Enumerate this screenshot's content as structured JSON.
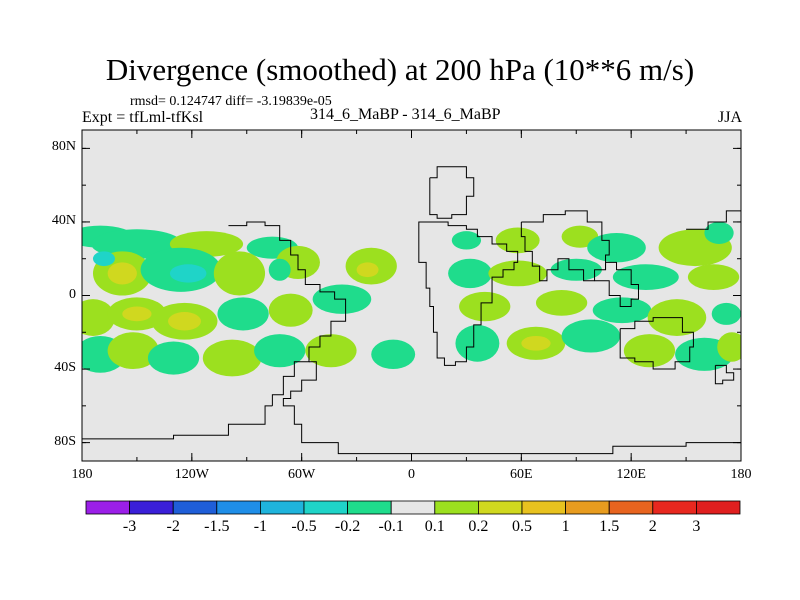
{
  "chart_data": {
    "type": "contour_map",
    "title": "Divergence (smoothed) at 200 hPa (10**6 m/s)",
    "stats": "rmsd= 0.124747 diff= -3.19839e-05",
    "experiment": "Expt = tfLml-tfKsl",
    "runs": "314_6_MaBP - 314_6_MaBP",
    "season": "JJA",
    "x_ticks": [
      "180",
      "120W",
      "60W",
      "0",
      "60E",
      "120E",
      "180"
    ],
    "y_ticks": [
      "80N",
      "40N",
      "0",
      "40S",
      "80S"
    ],
    "lon_range": [
      -180,
      180
    ],
    "lat_range": [
      -90,
      90
    ],
    "colorbar": {
      "labels": [
        "-3",
        "-2",
        "-1.5",
        "-1",
        "-0.5",
        "-0.2",
        "-0.1",
        "0.1",
        "0.2",
        "0.5",
        "1",
        "1.5",
        "2",
        "3"
      ],
      "colors": [
        "#9b1fe8",
        "#3a1fd8",
        "#1f5ed8",
        "#1f8ee8",
        "#1fb4dc",
        "#1fd4c8",
        "#1fdc8c",
        "#e6e6e6",
        "#9ce01f",
        "#d0d81f",
        "#e8c21f",
        "#e89c1f",
        "#e8641f",
        "#e8281f",
        "#e01f1f"
      ]
    },
    "field": {
      "neutral_color": "#e6e6e6",
      "positive_colors": [
        "#9ce01f",
        "#d0d81f"
      ],
      "negative_colors": [
        "#1fdc8c",
        "#1fd4c8",
        "#1fb4dc"
      ],
      "blobs": [
        {
          "lon": -170,
          "lat": 32,
          "w": 18,
          "h": 6,
          "level": -1
        },
        {
          "lon": -150,
          "lat": 28,
          "w": 25,
          "h": 8,
          "level": -1
        },
        {
          "lon": -112,
          "lat": 28,
          "w": 20,
          "h": 7,
          "level": 1
        },
        {
          "lon": -76,
          "lat": 26,
          "w": 14,
          "h": 6,
          "level": -1
        },
        {
          "lon": -158,
          "lat": 12,
          "w": 16,
          "h": 12,
          "level": 1
        },
        {
          "lon": -158,
          "lat": 12,
          "w": 8,
          "h": 6,
          "level": 2
        },
        {
          "lon": -168,
          "lat": 20,
          "w": 6,
          "h": 4,
          "level": -2
        },
        {
          "lon": -126,
          "lat": 14,
          "w": 22,
          "h": 12,
          "level": -1
        },
        {
          "lon": -122,
          "lat": 12,
          "w": 10,
          "h": 5,
          "level": -2
        },
        {
          "lon": -94,
          "lat": 12,
          "w": 14,
          "h": 12,
          "level": 1
        },
        {
          "lon": -62,
          "lat": 18,
          "w": 12,
          "h": 9,
          "level": 1
        },
        {
          "lon": -72,
          "lat": 14,
          "w": 6,
          "h": 6,
          "level": -1
        },
        {
          "lon": -22,
          "lat": 16,
          "w": 14,
          "h": 10,
          "level": 1
        },
        {
          "lon": -24,
          "lat": 14,
          "w": 6,
          "h": 4,
          "level": 2
        },
        {
          "lon": -174,
          "lat": -12,
          "w": 12,
          "h": 10,
          "level": 1
        },
        {
          "lon": -150,
          "lat": -10,
          "w": 16,
          "h": 9,
          "level": 1
        },
        {
          "lon": -150,
          "lat": -10,
          "w": 8,
          "h": 4,
          "level": 2
        },
        {
          "lon": -124,
          "lat": -14,
          "w": 18,
          "h": 10,
          "level": 1
        },
        {
          "lon": -124,
          "lat": -14,
          "w": 9,
          "h": 5,
          "level": 2
        },
        {
          "lon": -92,
          "lat": -10,
          "w": 14,
          "h": 9,
          "level": -1
        },
        {
          "lon": -66,
          "lat": -8,
          "w": 12,
          "h": 9,
          "level": 1
        },
        {
          "lon": -38,
          "lat": -2,
          "w": 16,
          "h": 8,
          "level": -1
        },
        {
          "lon": -170,
          "lat": -32,
          "w": 14,
          "h": 10,
          "level": -1
        },
        {
          "lon": -152,
          "lat": -30,
          "w": 14,
          "h": 10,
          "level": 1
        },
        {
          "lon": -130,
          "lat": -34,
          "w": 14,
          "h": 9,
          "level": -1
        },
        {
          "lon": -98,
          "lat": -34,
          "w": 16,
          "h": 10,
          "level": 1
        },
        {
          "lon": -72,
          "lat": -30,
          "w": 14,
          "h": 9,
          "level": -1
        },
        {
          "lon": -44,
          "lat": -30,
          "w": 14,
          "h": 9,
          "level": 1
        },
        {
          "lon": -10,
          "lat": -32,
          "w": 12,
          "h": 8,
          "level": -1
        },
        {
          "lon": 30,
          "lat": 30,
          "w": 8,
          "h": 5,
          "level": -1
        },
        {
          "lon": 58,
          "lat": 30,
          "w": 12,
          "h": 7,
          "level": 1
        },
        {
          "lon": 92,
          "lat": 32,
          "w": 10,
          "h": 6,
          "level": 1
        },
        {
          "lon": 112,
          "lat": 26,
          "w": 16,
          "h": 8,
          "level": -1
        },
        {
          "lon": 155,
          "lat": 26,
          "w": 20,
          "h": 10,
          "level": 1
        },
        {
          "lon": 168,
          "lat": 34,
          "w": 8,
          "h": 6,
          "level": -1
        },
        {
          "lon": 32,
          "lat": 12,
          "w": 12,
          "h": 8,
          "level": -1
        },
        {
          "lon": 58,
          "lat": 12,
          "w": 16,
          "h": 7,
          "level": 1
        },
        {
          "lon": 90,
          "lat": 14,
          "w": 14,
          "h": 6,
          "level": -1
        },
        {
          "lon": 128,
          "lat": 10,
          "w": 18,
          "h": 7,
          "level": -1
        },
        {
          "lon": 165,
          "lat": 10,
          "w": 14,
          "h": 7,
          "level": 1
        },
        {
          "lon": 40,
          "lat": -6,
          "w": 14,
          "h": 8,
          "level": 1
        },
        {
          "lon": 82,
          "lat": -4,
          "w": 14,
          "h": 7,
          "level": 1
        },
        {
          "lon": 115,
          "lat": -8,
          "w": 16,
          "h": 7,
          "level": -1
        },
        {
          "lon": 145,
          "lat": -12,
          "w": 16,
          "h": 10,
          "level": 1
        },
        {
          "lon": 172,
          "lat": -10,
          "w": 8,
          "h": 6,
          "level": -1
        },
        {
          "lon": 36,
          "lat": -26,
          "w": 12,
          "h": 10,
          "level": -1
        },
        {
          "lon": 68,
          "lat": -26,
          "w": 16,
          "h": 9,
          "level": 1
        },
        {
          "lon": 68,
          "lat": -26,
          "w": 8,
          "h": 4,
          "level": 2
        },
        {
          "lon": 98,
          "lat": -22,
          "w": 16,
          "h": 9,
          "level": -1
        },
        {
          "lon": 130,
          "lat": -30,
          "w": 14,
          "h": 9,
          "level": 1
        },
        {
          "lon": 160,
          "lat": -32,
          "w": 16,
          "h": 9,
          "level": -1
        },
        {
          "lon": 175,
          "lat": -28,
          "w": 8,
          "h": 8,
          "level": 1
        }
      ],
      "outlines": [
        [
          [
            -100,
            38
          ],
          [
            -90,
            40
          ],
          [
            -80,
            38
          ],
          [
            -72,
            30
          ],
          [
            -66,
            22
          ],
          [
            -62,
            14
          ],
          [
            -58,
            6
          ],
          [
            -50,
            2
          ],
          [
            -42,
            -2
          ],
          [
            -36,
            -8
          ],
          [
            -36,
            -14
          ],
          [
            -44,
            -22
          ],
          [
            -50,
            -28
          ],
          [
            -56,
            -36
          ],
          [
            -64,
            -44
          ],
          [
            -70,
            -54
          ],
          [
            -76,
            -60
          ]
        ],
        [
          [
            -76,
            -60
          ],
          [
            -80,
            -70
          ],
          [
            -100,
            -76
          ],
          [
            -130,
            -78
          ],
          [
            -180,
            -80
          ]
        ],
        [
          [
            -56,
            -36
          ],
          [
            -52,
            -46
          ],
          [
            -60,
            -52
          ],
          [
            -66,
            -56
          ],
          [
            -70,
            -60
          ],
          [
            -64,
            -70
          ],
          [
            -60,
            -80
          ],
          [
            -40,
            -86
          ],
          [
            60,
            -86
          ],
          [
            110,
            -82
          ],
          [
            150,
            -80
          ],
          [
            180,
            -78
          ]
        ],
        [
          [
            10,
            64
          ],
          [
            14,
            70
          ],
          [
            22,
            70
          ],
          [
            30,
            64
          ],
          [
            34,
            54
          ],
          [
            30,
            44
          ],
          [
            22,
            42
          ],
          [
            14,
            44
          ],
          [
            10,
            50
          ],
          [
            10,
            64
          ]
        ],
        [
          [
            10,
            40
          ],
          [
            4,
            36
          ],
          [
            4,
            18
          ],
          [
            8,
            4
          ],
          [
            10,
            -6
          ],
          [
            12,
            -20
          ],
          [
            14,
            -34
          ],
          [
            18,
            -38
          ],
          [
            24,
            -36
          ],
          [
            30,
            -28
          ],
          [
            34,
            -16
          ],
          [
            38,
            -4
          ],
          [
            44,
            10
          ],
          [
            50,
            14
          ],
          [
            56,
            18
          ],
          [
            58,
            24
          ],
          [
            52,
            28
          ],
          [
            44,
            32
          ],
          [
            36,
            36
          ],
          [
            30,
            38
          ],
          [
            20,
            40
          ],
          [
            10,
            40
          ]
        ],
        [
          [
            60,
            40
          ],
          [
            72,
            44
          ],
          [
            84,
            46
          ],
          [
            96,
            40
          ],
          [
            104,
            30
          ],
          [
            108,
            22
          ],
          [
            106,
            14
          ],
          [
            100,
            8
          ],
          [
            94,
            14
          ],
          [
            86,
            20
          ],
          [
            80,
            14
          ],
          [
            74,
            8
          ],
          [
            70,
            16
          ],
          [
            66,
            24
          ],
          [
            62,
            32
          ],
          [
            60,
            40
          ]
        ],
        [
          [
            100,
            8
          ],
          [
            108,
            0
          ],
          [
            114,
            -6
          ],
          [
            120,
            -2
          ],
          [
            124,
            6
          ],
          [
            120,
            14
          ],
          [
            112,
            18
          ],
          [
            106,
            14
          ]
        ],
        [
          [
            114,
            -18
          ],
          [
            122,
            -14
          ],
          [
            132,
            -12
          ],
          [
            140,
            -12
          ],
          [
            148,
            -20
          ],
          [
            154,
            -28
          ],
          [
            152,
            -36
          ],
          [
            144,
            -40
          ],
          [
            132,
            -36
          ],
          [
            122,
            -34
          ],
          [
            114,
            -28
          ],
          [
            114,
            -18
          ]
        ],
        [
          [
            150,
            36
          ],
          [
            162,
            40
          ],
          [
            172,
            46
          ],
          [
            180,
            50
          ]
        ],
        [
          [
            166,
            -38
          ],
          [
            172,
            -42
          ],
          [
            176,
            -46
          ],
          [
            170,
            -48
          ],
          [
            166,
            -44
          ],
          [
            166,
            -38
          ]
        ]
      ]
    }
  }
}
